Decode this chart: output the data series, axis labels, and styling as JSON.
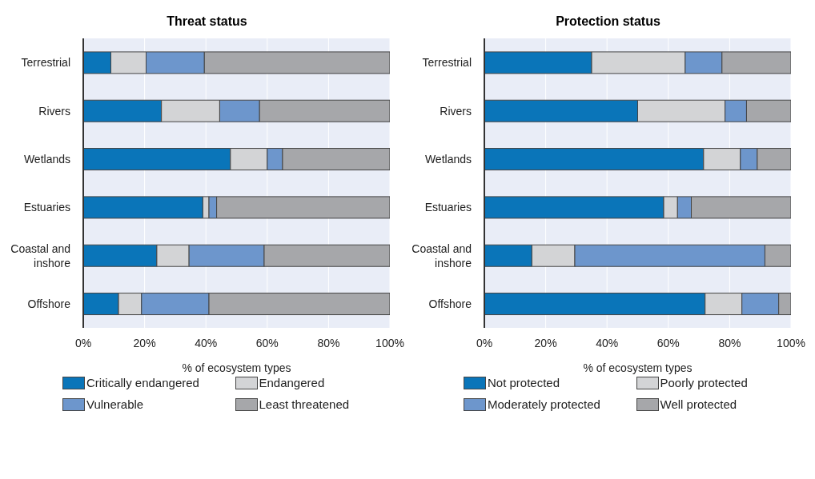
{
  "chart_data": [
    {
      "type": "bar",
      "orientation": "horizontal",
      "stacked": true,
      "title": "Threat status",
      "xlabel": "% of ecosystem types",
      "categories": [
        "Terrestrial",
        "Rivers",
        "Wetlands",
        "Estuaries",
        "Coastal and inshore",
        "Offshore"
      ],
      "series": [
        {
          "name": "Critically endangered",
          "color": "#0a75b9",
          "values": [
            9,
            25.5,
            48,
            39,
            24,
            11.5
          ]
        },
        {
          "name": "Endangered",
          "color": "#d3d4d6",
          "values": [
            11.5,
            19,
            12,
            2,
            10.5,
            7.5
          ]
        },
        {
          "name": "Vulnerable",
          "color": "#6d96cc",
          "values": [
            19,
            13,
            5,
            2.5,
            24.5,
            22
          ]
        },
        {
          "name": "Least threatened",
          "color": "#a6a7aa",
          "values": [
            60.5,
            42.5,
            35,
            56.5,
            41,
            59
          ]
        }
      ],
      "xlim": [
        0,
        100
      ],
      "xticks": [
        {
          "value": 0,
          "label": "0%"
        },
        {
          "value": 20,
          "label": "20%"
        },
        {
          "value": 40,
          "label": "40%"
        },
        {
          "value": 60,
          "label": "60%"
        },
        {
          "value": 80,
          "label": "80%"
        },
        {
          "value": 100,
          "label": "100%"
        }
      ],
      "grid": "x",
      "legend": "bottom"
    },
    {
      "type": "bar",
      "orientation": "horizontal",
      "stacked": true,
      "title": "Protection status",
      "xlabel": "% of ecosystem types",
      "categories": [
        "Terrestrial",
        "Rivers",
        "Wetlands",
        "Estuaries",
        "Coastal and inshore",
        "Offshore"
      ],
      "series": [
        {
          "name": "Not protected",
          "color": "#0a75b9",
          "values": [
            35,
            50,
            71.5,
            58.5,
            15.5,
            72
          ]
        },
        {
          "name": "Poorly protected",
          "color": "#d3d4d6",
          "values": [
            30.5,
            28.5,
            12,
            4.5,
            14,
            12
          ]
        },
        {
          "name": "Moderately protected",
          "color": "#6d96cc",
          "values": [
            12,
            7,
            5.5,
            4.5,
            62,
            12
          ]
        },
        {
          "name": "Well protected",
          "color": "#a6a7aa",
          "values": [
            22.5,
            14.5,
            11,
            32.5,
            8.5,
            4
          ]
        }
      ],
      "xlim": [
        0,
        100
      ],
      "xticks": [
        {
          "value": 0,
          "label": "0%"
        },
        {
          "value": 20,
          "label": "20%"
        },
        {
          "value": 40,
          "label": "40%"
        },
        {
          "value": 60,
          "label": "60%"
        },
        {
          "value": 80,
          "label": "80%"
        },
        {
          "value": 100,
          "label": "100%"
        }
      ],
      "grid": "x",
      "legend": "bottom"
    }
  ]
}
